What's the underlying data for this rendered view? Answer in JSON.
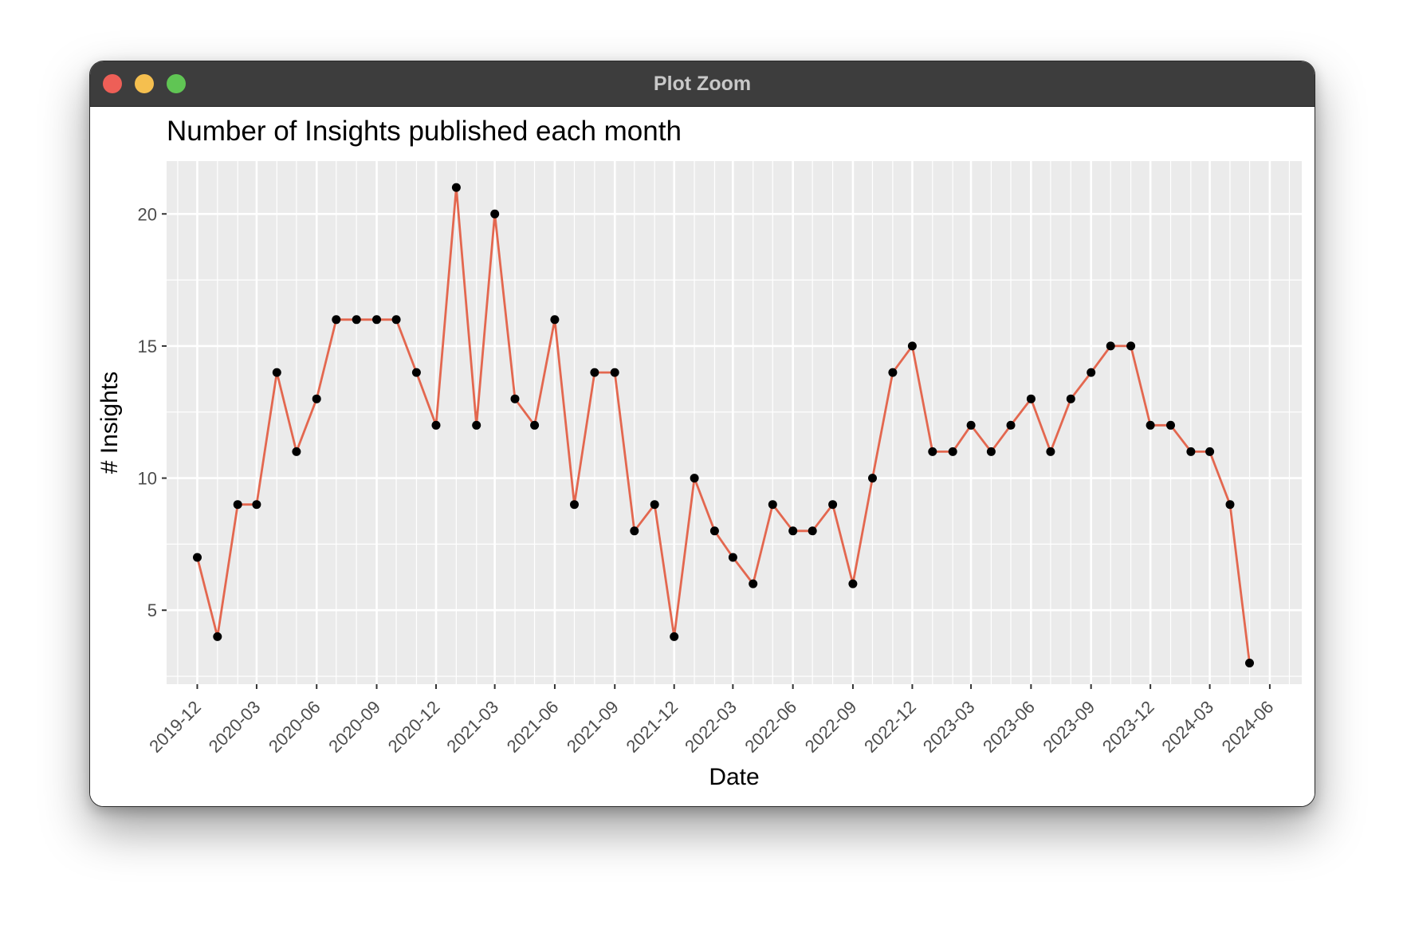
{
  "window": {
    "title": "Plot Zoom",
    "buttons": [
      "close",
      "minimize",
      "zoom"
    ]
  },
  "colors": {
    "line": "#E3674F",
    "point": "#000000",
    "panel": "#EBEBEB",
    "grid": "#FFFFFF"
  },
  "chart_data": {
    "type": "line",
    "title": "Number of Insights published each month",
    "xlabel": "Date",
    "ylabel": "# Insights",
    "ylim": [
      2.2,
      22
    ],
    "xlim": [
      "2019-10-15",
      "2024-07-20"
    ],
    "yticks": [
      5,
      10,
      15,
      20
    ],
    "xticks": [
      "2019-12",
      "2020-03",
      "2020-06",
      "2020-09",
      "2020-12",
      "2021-03",
      "2021-06",
      "2021-09",
      "2021-12",
      "2022-03",
      "2022-06",
      "2022-09",
      "2022-12",
      "2023-03",
      "2023-06",
      "2023-09",
      "2023-12",
      "2024-03",
      "2024-06"
    ],
    "grid": true,
    "legend": "none",
    "series": [
      {
        "x": [
          "2019-12",
          "2020-01",
          "2020-02",
          "2020-03",
          "2020-04",
          "2020-05",
          "2020-06",
          "2020-07",
          "2020-08",
          "2020-09",
          "2020-10",
          "2020-11",
          "2020-12",
          "2021-01",
          "2021-02",
          "2021-03",
          "2021-04",
          "2021-05",
          "2021-06",
          "2021-07",
          "2021-08",
          "2021-09",
          "2021-10",
          "2021-11",
          "2021-12",
          "2022-01",
          "2022-02",
          "2022-03",
          "2022-04",
          "2022-05",
          "2022-06",
          "2022-07",
          "2022-08",
          "2022-09",
          "2022-10",
          "2022-11",
          "2022-12",
          "2023-01",
          "2023-02",
          "2023-03",
          "2023-04",
          "2023-05",
          "2023-06",
          "2023-07",
          "2023-08",
          "2023-09",
          "2023-10",
          "2023-11",
          "2023-12",
          "2024-01",
          "2024-02",
          "2024-03",
          "2024-04",
          "2024-05"
        ],
        "values": [
          7,
          4,
          9,
          9,
          14,
          11,
          13,
          16,
          16,
          16,
          16,
          14,
          12,
          21,
          12,
          20,
          13,
          12,
          16,
          9,
          14,
          14,
          8,
          9,
          4,
          10,
          8,
          7,
          6,
          9,
          8,
          8,
          9,
          6,
          10,
          14,
          15,
          11,
          11,
          12,
          11,
          12,
          13,
          11,
          13,
          14,
          15,
          15,
          12,
          12,
          11,
          11,
          9,
          3
        ]
      }
    ]
  }
}
